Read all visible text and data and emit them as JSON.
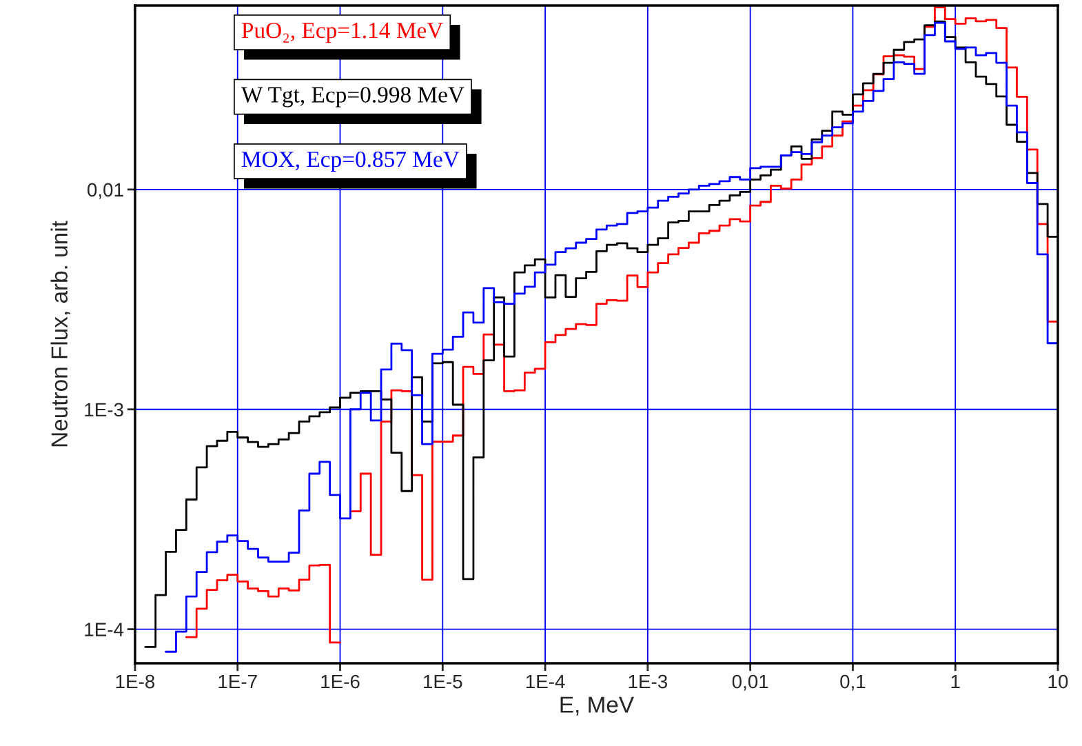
{
  "chart_data": {
    "type": "step",
    "xlabel": "E, MeV",
    "ylabel": "Neutron Flux, arb. unit",
    "log": "xy",
    "grid": true,
    "xlim": [
      1e-08,
      10
    ],
    "ylim": [
      7e-05,
      0.0687
    ],
    "xticks": [
      {
        "value": 1e-08,
        "label": "1E-8"
      },
      {
        "value": 1e-07,
        "label": "1E-7"
      },
      {
        "value": 1e-06,
        "label": "1E-6"
      },
      {
        "value": 1e-05,
        "label": "1E-5"
      },
      {
        "value": 0.0001,
        "label": "1E-4"
      },
      {
        "value": 0.001,
        "label": "1E-3"
      },
      {
        "value": 0.01,
        "label": "0,01"
      },
      {
        "value": 0.1,
        "label": "0,1"
      },
      {
        "value": 1,
        "label": "1"
      },
      {
        "value": 10,
        "label": "10"
      }
    ],
    "yticks": [
      {
        "value": 0.0001,
        "label": "1E-4"
      },
      {
        "value": 0.001,
        "label": "1E-3"
      },
      {
        "value": 0.01,
        "label": "0,01"
      }
    ],
    "series": [
      {
        "name": "PuO₂, Ecp=1.14 MeV",
        "color": "#ff0000",
        "x": [
          3.162e-08,
          3.981e-08,
          5.012e-08,
          6.31e-08,
          7.943e-08,
          1e-07,
          1.259e-07,
          1.585e-07,
          1.995e-07,
          2.512e-07,
          3.162e-07,
          3.981e-07,
          5.012e-07,
          6.31e-07,
          7.943e-07,
          1e-06,
          1.259e-06,
          1.585e-06,
          1.995e-06,
          2.512e-06,
          3.162e-06,
          3.981e-06,
          5.012e-06,
          6.31e-06,
          7.943e-06,
          1e-05,
          1.259e-05,
          1.585e-05,
          1.995e-05,
          2.512e-05,
          3.162e-05,
          3.981e-05,
          5.012e-05,
          6.31e-05,
          7.943e-05,
          0.0001,
          0.0001259,
          0.0001585,
          0.0001995,
          0.0002512,
          0.0003162,
          0.0003981,
          0.0005012,
          0.000631,
          0.0007943,
          0.001,
          0.001259,
          0.001585,
          0.001995,
          0.002512,
          0.003162,
          0.003981,
          0.005012,
          0.00631,
          0.007943,
          0.01,
          0.01259,
          0.01585,
          0.01995,
          0.02512,
          0.03162,
          0.03981,
          0.05012,
          0.0631,
          0.07943,
          0.1,
          0.1259,
          0.1585,
          0.1995,
          0.2512,
          0.3162,
          0.3981,
          0.5012,
          0.631,
          0.7943,
          1,
          1.259,
          1.585,
          1.995,
          2.512,
          3.162,
          3.981,
          5.012,
          6.31,
          7.943
        ],
        "values": [
          9.2e-05,
          0.000124,
          0.000151,
          0.000167,
          0.000177,
          0.000165,
          0.000153,
          0.000149,
          0.000141,
          0.000153,
          0.00015,
          0.000168,
          0.000195,
          0.000196,
          8.7e-05,
          null,
          0.000344,
          0.00051,
          0.000218,
          0.00088,
          0.00122,
          0.00121,
          0.000502,
          0.000168,
          0.000713,
          0.000713,
          0.00076,
          0.00156,
          0.00145,
          0.00219,
          0.00197,
          0.00121,
          0.00122,
          0.00147,
          0.00153,
          0.00202,
          0.00218,
          0.00232,
          0.00244,
          0.00242,
          0.00302,
          0.00314,
          0.00312,
          0.00406,
          0.0036,
          0.0042,
          0.00463,
          0.00507,
          0.00542,
          0.00573,
          0.00632,
          0.00649,
          0.00686,
          0.00733,
          0.00716,
          0.00845,
          0.00879,
          0.0104,
          0.0101,
          0.0111,
          0.013,
          0.0139,
          0.0157,
          0.0176,
          0.0204,
          0.0241,
          0.0283,
          0.0334,
          0.0404,
          0.0408,
          0.0402,
          0.0353,
          0.055,
          0.0674,
          0.0596,
          0.0568,
          0.0601,
          0.0582,
          0.0591,
          0.0543,
          0.0359,
          0.0264,
          0.0152,
          0.00697,
          0.00251
        ]
      },
      {
        "name": "W Tgt, Ecp=0.998 MeV",
        "color": "#000000",
        "x": [
          1.259e-08,
          1.585e-08,
          1.995e-08,
          2.512e-08,
          3.162e-08,
          3.981e-08,
          5.012e-08,
          6.31e-08,
          7.943e-08,
          1e-07,
          1.259e-07,
          1.585e-07,
          1.995e-07,
          2.512e-07,
          3.162e-07,
          3.981e-07,
          5.012e-07,
          6.31e-07,
          7.943e-07,
          1e-06,
          1.259e-06,
          1.585e-06,
          1.995e-06,
          2.512e-06,
          3.162e-06,
          3.981e-06,
          5.012e-06,
          6.31e-06,
          7.943e-06,
          1e-05,
          1.259e-05,
          1.585e-05,
          1.995e-05,
          2.512e-05,
          3.162e-05,
          3.981e-05,
          5.012e-05,
          6.31e-05,
          7.943e-05,
          0.0001,
          0.0001259,
          0.0001585,
          0.0001995,
          0.0002512,
          0.0003162,
          0.0003981,
          0.0005012,
          0.000631,
          0.0007943,
          0.001,
          0.001259,
          0.001585,
          0.001995,
          0.002512,
          0.003162,
          0.003981,
          0.005012,
          0.00631,
          0.007943,
          0.01,
          0.01259,
          0.01585,
          0.01995,
          0.02512,
          0.03162,
          0.03981,
          0.05012,
          0.0631,
          0.07943,
          0.1,
          0.1259,
          0.1585,
          0.1995,
          0.2512,
          0.3162,
          0.3981,
          0.5012,
          0.631,
          0.7943,
          1,
          1.259,
          1.585,
          1.995,
          2.512,
          3.162,
          3.981,
          5.012,
          6.31,
          7.943
        ],
        "values": [
          8.3e-05,
          0.000143,
          0.000225,
          0.000283,
          0.000389,
          0.000545,
          0.00068,
          0.00072,
          0.00079,
          0.000745,
          0.00071,
          0.000675,
          0.000695,
          0.00073,
          0.00078,
          0.00088,
          0.00093,
          0.00097,
          0.00102,
          0.00113,
          0.00119,
          0.00121,
          0.00121,
          0.00111,
          0.000635,
          0.000425,
          0.0014,
          0.00088,
          0.00162,
          0.00164,
          0.00105,
          0.000169,
          0.000605,
          0.00167,
          0.00323,
          0.00174,
          0.0042,
          0.00452,
          0.00481,
          0.00323,
          0.00408,
          0.00325,
          0.00395,
          0.00422,
          0.00524,
          0.0056,
          0.00569,
          0.0054,
          0.00519,
          0.0056,
          0.006,
          0.00708,
          0.0072,
          0.00795,
          0.00795,
          0.0085,
          0.0089,
          0.0094,
          0.00975,
          0.0111,
          0.0116,
          0.0123,
          0.0143,
          0.0157,
          0.0138,
          0.0169,
          0.0185,
          0.0226,
          0.0219,
          0.0271,
          0.0304,
          0.0336,
          0.0377,
          0.0432,
          0.0469,
          0.0482,
          0.0559,
          0.0581,
          0.0494,
          0.0443,
          0.0379,
          0.0326,
          0.0302,
          0.0265,
          0.0197,
          0.0165,
          0.0119,
          0.0086,
          0.0061
        ]
      },
      {
        "name": "MOX, Ecp=0.857 MeV",
        "color": "#0000ff",
        "x": [
          1.995e-08,
          2.512e-08,
          3.162e-08,
          3.981e-08,
          5.012e-08,
          6.31e-08,
          7.943e-08,
          1e-07,
          1.259e-07,
          1.585e-07,
          1.995e-07,
          2.512e-07,
          3.162e-07,
          3.981e-07,
          5.012e-07,
          6.31e-07,
          7.943e-07,
          1e-06,
          1.259e-06,
          1.585e-06,
          1.995e-06,
          2.512e-06,
          3.162e-06,
          3.981e-06,
          5.012e-06,
          6.31e-06,
          7.943e-06,
          1e-05,
          1.259e-05,
          1.585e-05,
          1.995e-05,
          2.512e-05,
          3.162e-05,
          3.981e-05,
          5.012e-05,
          6.31e-05,
          7.943e-05,
          0.0001,
          0.0001259,
          0.0001585,
          0.0001995,
          0.0002512,
          0.0003162,
          0.0003981,
          0.0005012,
          0.000631,
          0.0007943,
          0.001,
          0.001259,
          0.001585,
          0.001995,
          0.002512,
          0.003162,
          0.003981,
          0.005012,
          0.00631,
          0.007943,
          0.01,
          0.01259,
          0.01585,
          0.01995,
          0.02512,
          0.03162,
          0.03981,
          0.05012,
          0.0631,
          0.07943,
          0.1,
          0.1259,
          0.1585,
          0.1995,
          0.2512,
          0.3162,
          0.3981,
          0.5012,
          0.631,
          0.7943,
          1,
          1.259,
          1.585,
          1.995,
          2.512,
          3.162,
          3.981,
          5.012,
          6.31,
          7.943
        ],
        "values": [
          7.9e-05,
          9.75e-05,
          0.000141,
          0.000182,
          0.000224,
          0.00025,
          0.000267,
          0.000252,
          0.000232,
          0.000212,
          0.000203,
          0.000203,
          0.000223,
          0.000347,
          0.00051,
          0.000577,
          0.000408,
          0.000319,
          0.001,
          0.00119,
          0.00089,
          0.00152,
          0.00199,
          0.00186,
          0.00116,
          0.000695,
          0.00179,
          0.00187,
          0.00214,
          0.00276,
          0.00248,
          0.00356,
          0.00307,
          0.00302,
          0.00336,
          0.00361,
          0.0042,
          0.00455,
          0.00519,
          0.0054,
          0.00573,
          0.00596,
          0.00658,
          0.00686,
          0.00697,
          0.00782,
          0.00795,
          0.00827,
          0.0089,
          0.00927,
          0.0096,
          0.01,
          0.0104,
          0.0106,
          0.0109,
          0.0114,
          0.0111,
          0.0125,
          0.0127,
          0.0127,
          0.0143,
          0.0148,
          0.0145,
          0.0164,
          0.0176,
          0.0192,
          0.02,
          0.0226,
          0.0253,
          0.0281,
          0.0318,
          0.0379,
          0.0373,
          0.0336,
          0.0504,
          0.0573,
          0.0472,
          0.0436,
          0.0443,
          0.0408,
          0.0418,
          0.0377,
          0.0241,
          0.0182,
          0.0107,
          0.00507,
          0.002
        ]
      }
    ]
  }
}
